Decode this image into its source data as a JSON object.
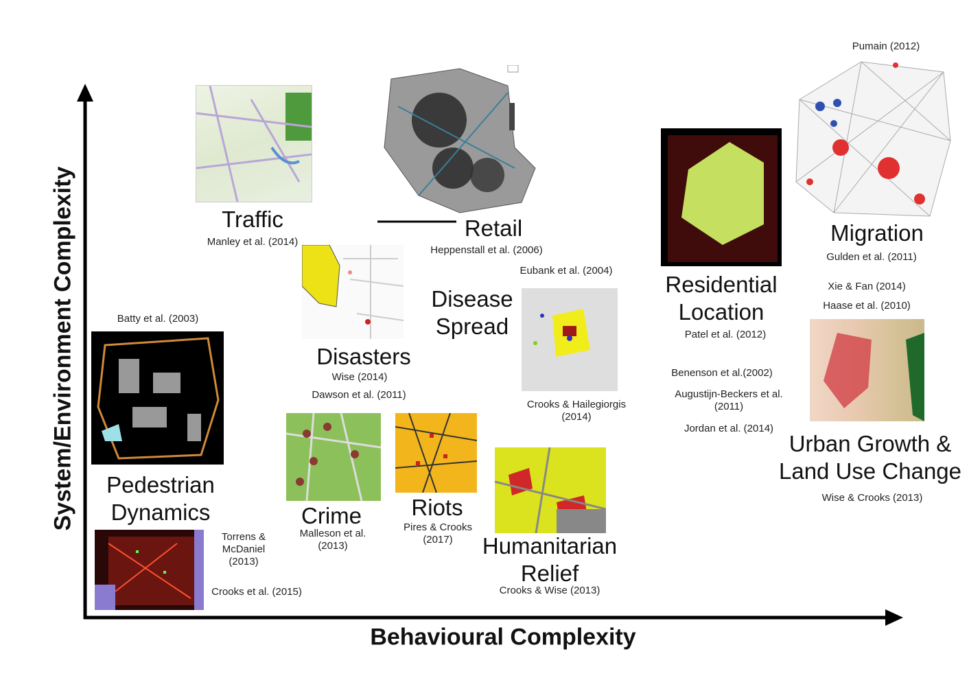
{
  "axes": {
    "x_label": "Behavioural Complexity",
    "y_label": "System/Environment Complexity"
  },
  "titles": [
    "Traffic",
    "Retail",
    "Migration",
    "Residential Location",
    "Disease Spread",
    "Disasters",
    "Pedestrian Dynamics",
    "Crime",
    "Riots",
    "Humanitarian Relief",
    "Urban Growth & Land Use Change"
  ],
  "citations": [
    "Manley et al. (2014)",
    "Heppenstall et al. (2006)",
    "Pumain (2012)",
    "Gulden et al. (2011)",
    "Xie & Fan (2014)",
    "Haase et al. (2010)",
    "Patel et al. (2012)",
    "Eubank et al. (2004)",
    "Wise (2014)",
    "Dawson et al. (2011)",
    "Crooks & Hailegiorgis (2014)",
    "Batty et al. (2003)",
    "Benenson et al.(2002)",
    "Augustijn-Beckers et al. (2011)",
    "Jordan et al. (2014)",
    "Wise & Crooks (2013)",
    "Malleson et al. (2013)",
    "Pires & Crooks (2017)",
    "Crooks & Wise (2013)",
    "Torrens & McDaniel (2013)",
    "Crooks et al. (2015)"
  ]
}
